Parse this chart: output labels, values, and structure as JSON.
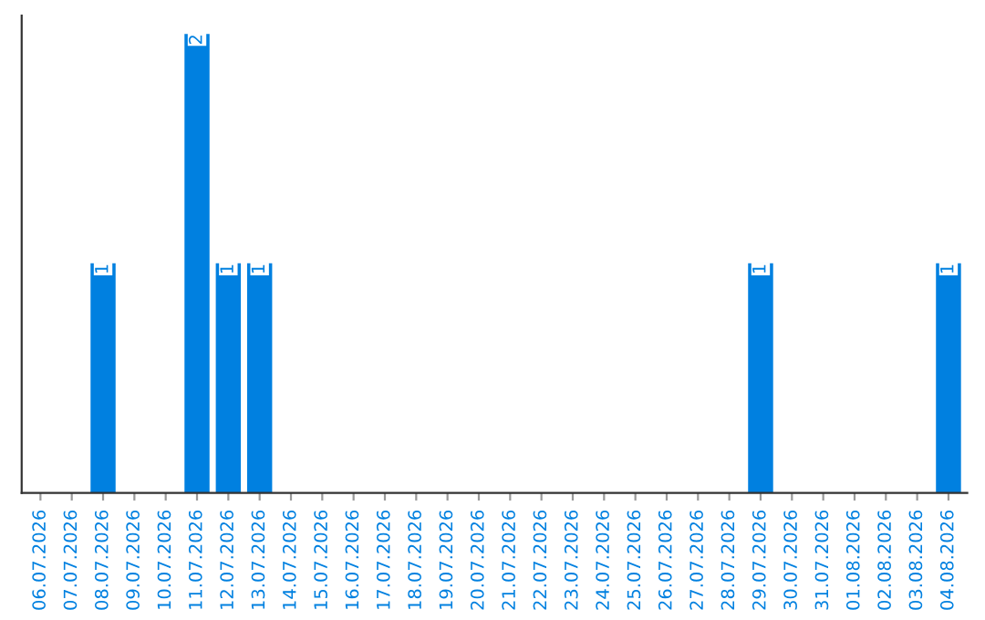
{
  "chart_data": {
    "type": "bar",
    "categories": [
      "06.07.2026",
      "07.07.2026",
      "08.07.2026",
      "09.07.2026",
      "10.07.2026",
      "11.07.2026",
      "12.07.2026",
      "13.07.2026",
      "14.07.2026",
      "15.07.2026",
      "16.07.2026",
      "17.07.2026",
      "18.07.2026",
      "19.07.2026",
      "20.07.2026",
      "21.07.2026",
      "22.07.2026",
      "23.07.2026",
      "24.07.2026",
      "25.07.2026",
      "26.07.2026",
      "27.07.2026",
      "28.07.2026",
      "29.07.2026",
      "30.07.2026",
      "31.07.2026",
      "01.08.2026",
      "02.08.2026",
      "03.08.2026",
      "04.08.2026"
    ],
    "values": [
      0,
      0,
      1,
      0,
      0,
      2,
      1,
      1,
      0,
      0,
      0,
      0,
      0,
      0,
      0,
      0,
      0,
      0,
      0,
      0,
      0,
      0,
      0,
      1,
      0,
      0,
      0,
      0,
      0,
      1
    ],
    "color": "#0080e0",
    "value_labels": [
      null,
      null,
      "1",
      null,
      null,
      "2",
      "1",
      "1",
      null,
      null,
      null,
      null,
      null,
      null,
      null,
      null,
      null,
      null,
      null,
      null,
      null,
      null,
      null,
      "1",
      null,
      null,
      null,
      null,
      null,
      "1"
    ],
    "tick_labels": "x",
    "grid": false,
    "legend": false
  }
}
